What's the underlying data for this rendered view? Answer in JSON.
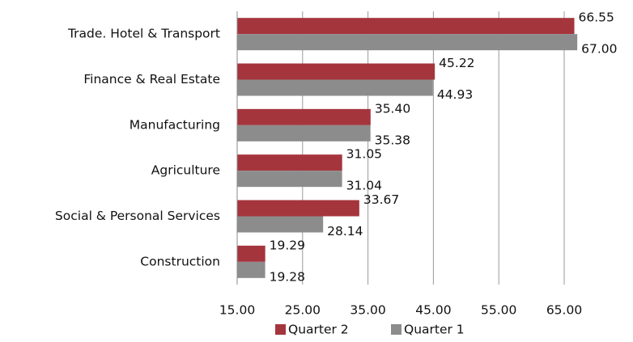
{
  "chart_data": {
    "type": "hbar",
    "categories": [
      "Trade. Hotel & Transport",
      "Finance & Real Estate",
      "Manufacturing",
      "Agriculture",
      "Social & Personal Services",
      "Construction"
    ],
    "series": [
      {
        "name": "Quarter 2",
        "color": "#a5353d",
        "values": [
          66.55,
          45.22,
          35.4,
          31.05,
          33.67,
          19.29
        ],
        "value_labels": [
          "66.55",
          "45.22",
          "35.40",
          "31.05",
          "33.67",
          "19.29"
        ]
      },
      {
        "name": "Quarter 1",
        "color": "#8c8c8c",
        "values": [
          67.0,
          44.93,
          35.38,
          31.04,
          28.14,
          19.28
        ],
        "value_labels": [
          "67.00",
          "44.93",
          "35.38",
          "31.04",
          "28.14",
          "19.28"
        ]
      }
    ],
    "xlim": [
      15,
      70
    ],
    "xticks": [
      {
        "value": 15,
        "label": "15.00"
      },
      {
        "value": 25,
        "label": "25.00"
      },
      {
        "value": 35,
        "label": "35.00"
      },
      {
        "value": 45,
        "label": "45.00"
      },
      {
        "value": 55,
        "label": "55.00"
      },
      {
        "value": 65,
        "label": "65.00"
      }
    ],
    "grid": true,
    "legend": "bottom"
  }
}
